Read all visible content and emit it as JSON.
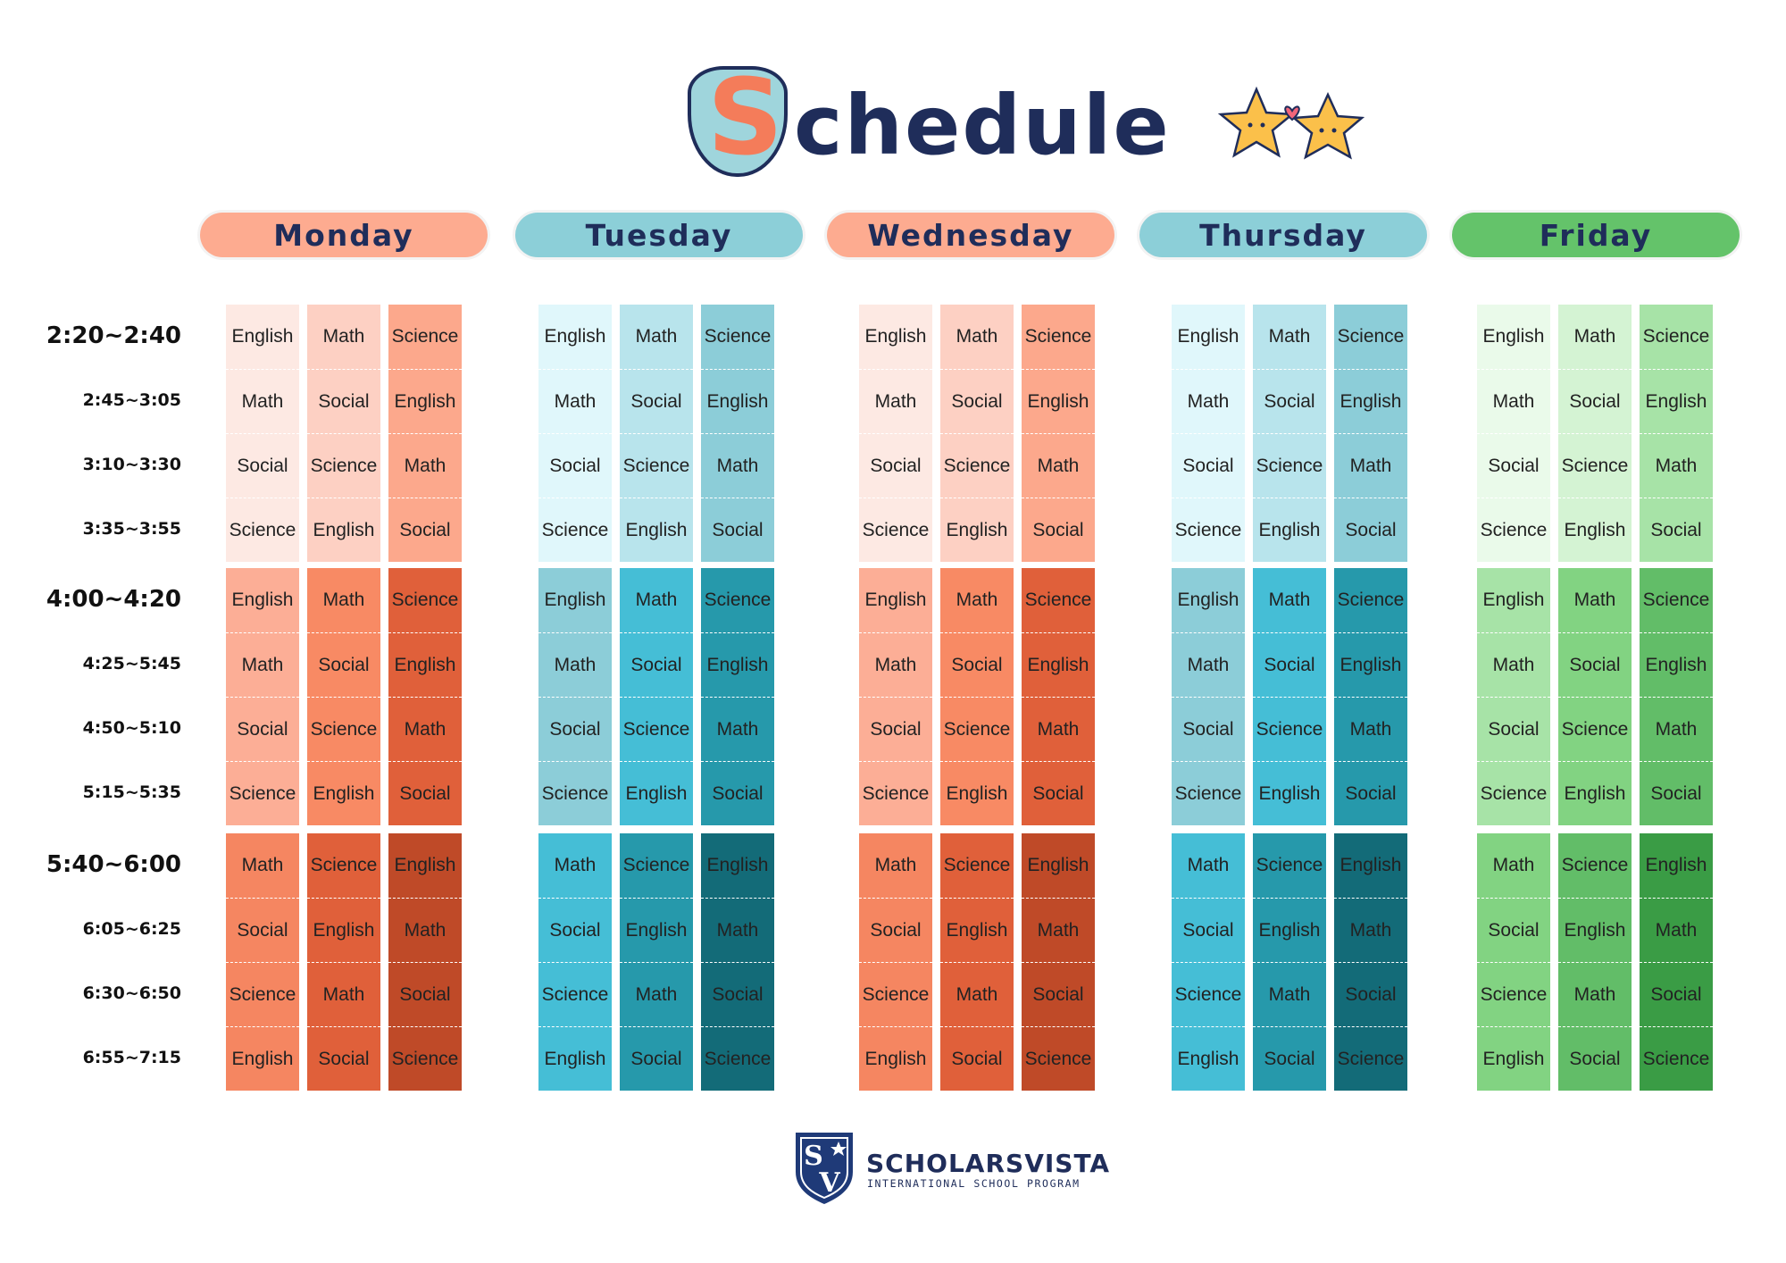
{
  "header": {
    "title": "Schedule"
  },
  "times": [
    "2:20~2:40",
    "2:45~3:05",
    "3:10~3:30",
    "3:35~3:55",
    "4:00~4:20",
    "4:25~5:45",
    "4:50~5:10",
    "5:15~5:35",
    "5:40~6:00",
    "6:05~6:25",
    "6:30~6:50",
    "6:55~7:15"
  ],
  "days": [
    {
      "name": "Monday",
      "rows": [
        [
          "English",
          "Math",
          "Science"
        ],
        [
          "Math",
          "Social",
          "English"
        ],
        [
          "Social",
          "Science",
          "Math"
        ],
        [
          "Science",
          "English",
          "Social"
        ],
        [
          "English",
          "Math",
          "Science"
        ],
        [
          "Math",
          "Social",
          "English"
        ],
        [
          "Social",
          "Science",
          "Math"
        ],
        [
          "Science",
          "English",
          "Social"
        ],
        [
          "Math",
          "Science",
          "English"
        ],
        [
          "Social",
          "English",
          "Math"
        ],
        [
          "Science",
          "Math",
          "Social"
        ],
        [
          "English",
          "Social",
          "Science"
        ]
      ]
    },
    {
      "name": "Tuesday",
      "rows": [
        [
          "English",
          "Math",
          "Science"
        ],
        [
          "Math",
          "Social",
          "English"
        ],
        [
          "Social",
          "Science",
          "Math"
        ],
        [
          "Science",
          "English",
          "Social"
        ],
        [
          "English",
          "Math",
          "Science"
        ],
        [
          "Math",
          "Social",
          "English"
        ],
        [
          "Social",
          "Science",
          "Math"
        ],
        [
          "Science",
          "English",
          "Social"
        ],
        [
          "Math",
          "Science",
          "English"
        ],
        [
          "Social",
          "English",
          "Math"
        ],
        [
          "Science",
          "Math",
          "Social"
        ],
        [
          "English",
          "Social",
          "Science"
        ]
      ]
    },
    {
      "name": "Wednesday",
      "rows": [
        [
          "English",
          "Math",
          "Science"
        ],
        [
          "Math",
          "Social",
          "English"
        ],
        [
          "Social",
          "Science",
          "Math"
        ],
        [
          "Science",
          "English",
          "Social"
        ],
        [
          "English",
          "Math",
          "Science"
        ],
        [
          "Math",
          "Social",
          "English"
        ],
        [
          "Social",
          "Science",
          "Math"
        ],
        [
          "Science",
          "English",
          "Social"
        ],
        [
          "Math",
          "Science",
          "English"
        ],
        [
          "Social",
          "English",
          "Math"
        ],
        [
          "Science",
          "Math",
          "Social"
        ],
        [
          "English",
          "Social",
          "Science"
        ]
      ]
    },
    {
      "name": "Thursday",
      "rows": [
        [
          "English",
          "Math",
          "Science"
        ],
        [
          "Math",
          "Social",
          "English"
        ],
        [
          "Social",
          "Science",
          "Math"
        ],
        [
          "Science",
          "English",
          "Social"
        ],
        [
          "English",
          "Math",
          "Science"
        ],
        [
          "Math",
          "Social",
          "English"
        ],
        [
          "Social",
          "Science",
          "Math"
        ],
        [
          "Science",
          "English",
          "Social"
        ],
        [
          "Math",
          "Science",
          "English"
        ],
        [
          "Social",
          "English",
          "Math"
        ],
        [
          "Science",
          "Math",
          "Social"
        ],
        [
          "English",
          "Social",
          "Science"
        ]
      ]
    },
    {
      "name": "Friday",
      "rows": [
        [
          "English",
          "Math",
          "Science"
        ],
        [
          "Math",
          "Social",
          "English"
        ],
        [
          "Social",
          "Science",
          "Math"
        ],
        [
          "Science",
          "English",
          "Social"
        ],
        [
          "English",
          "Math",
          "Science"
        ],
        [
          "Math",
          "Social",
          "English"
        ],
        [
          "Social",
          "Science",
          "Math"
        ],
        [
          "Science",
          "English",
          "Social"
        ],
        [
          "Math",
          "Science",
          "English"
        ],
        [
          "Social",
          "English",
          "Math"
        ],
        [
          "Science",
          "Math",
          "Social"
        ],
        [
          "English",
          "Social",
          "Science"
        ]
      ]
    }
  ],
  "logo": {
    "monogram": [
      "S",
      "V"
    ],
    "name": "SCHOLARSVISTA",
    "tagline": "INTERNATIONAL SCHOOL PROGRAM"
  }
}
